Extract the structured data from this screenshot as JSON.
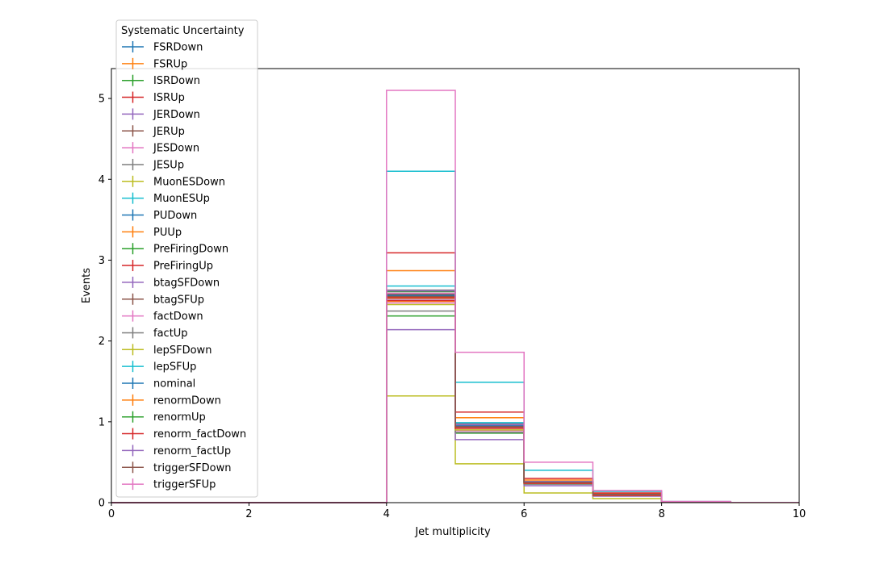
{
  "chart_data": {
    "type": "histogram-step",
    "xlabel": "Jet multiplicity",
    "ylabel": "Events",
    "xlim": [
      0,
      10
    ],
    "ylim": [
      0,
      5.37
    ],
    "xticks": [
      "0",
      "2",
      "4",
      "6",
      "8",
      "10"
    ],
    "yticks": [
      "0",
      "1",
      "2",
      "3",
      "4",
      "5"
    ],
    "bin_edges": [
      0,
      1,
      2,
      3,
      4,
      5,
      6,
      7,
      8,
      9,
      10
    ],
    "legend": {
      "title": "Systematic Uncertainty",
      "position": "upper-left"
    },
    "series": [
      {
        "name": "FSRDown",
        "color": "#1f77b4",
        "values": [
          0,
          0,
          0,
          0,
          2.55,
          0.94,
          0.25,
          0.1,
          0.01,
          0.002
        ]
      },
      {
        "name": "FSRUp",
        "color": "#ff7f0e",
        "values": [
          0,
          0,
          0,
          0,
          2.87,
          1.05,
          0.28,
          0.11,
          0.011,
          0.002
        ]
      },
      {
        "name": "ISRDown",
        "color": "#2ca02c",
        "values": [
          0,
          0,
          0,
          0,
          2.31,
          0.86,
          0.23,
          0.09,
          0.009,
          0.002
        ]
      },
      {
        "name": "ISRUp",
        "color": "#d62728",
        "values": [
          0,
          0,
          0,
          0,
          3.09,
          1.12,
          0.3,
          0.12,
          0.012,
          0.002
        ]
      },
      {
        "name": "JERDown",
        "color": "#9467bd",
        "values": [
          0,
          0,
          0,
          0,
          2.52,
          0.93,
          0.25,
          0.1,
          0.01,
          0.002
        ]
      },
      {
        "name": "JERUp",
        "color": "#8c564b",
        "values": [
          0,
          0,
          0,
          0,
          2.57,
          0.95,
          0.25,
          0.1,
          0.01,
          0.002
        ]
      },
      {
        "name": "JESDown",
        "color": "#e377c2",
        "values": [
          0,
          0,
          0,
          0,
          2.47,
          0.89,
          0.24,
          0.09,
          0.009,
          0.002
        ]
      },
      {
        "name": "JESUp",
        "color": "#7f7f7f",
        "values": [
          0,
          0,
          0,
          0,
          2.63,
          0.98,
          0.26,
          0.1,
          0.01,
          0.002
        ]
      },
      {
        "name": "MuonESDown",
        "color": "#bcbd22",
        "values": [
          0,
          0,
          0,
          0,
          1.32,
          0.48,
          0.12,
          0.05,
          0.005,
          0.001
        ]
      },
      {
        "name": "MuonESUp",
        "color": "#17becf",
        "values": [
          0,
          0,
          0,
          0,
          4.1,
          1.49,
          0.4,
          0.14,
          0.014,
          0.003
        ]
      },
      {
        "name": "PUDown",
        "color": "#1f77b4",
        "values": [
          0,
          0,
          0,
          0,
          2.57,
          0.95,
          0.25,
          0.1,
          0.01,
          0.002
        ]
      },
      {
        "name": "PUUp",
        "color": "#ff7f0e",
        "values": [
          0,
          0,
          0,
          0,
          2.53,
          0.94,
          0.25,
          0.1,
          0.01,
          0.002
        ]
      },
      {
        "name": "PreFiringDown",
        "color": "#2ca02c",
        "values": [
          0,
          0,
          0,
          0,
          2.56,
          0.95,
          0.25,
          0.1,
          0.01,
          0.002
        ]
      },
      {
        "name": "PreFiringUp",
        "color": "#d62728",
        "values": [
          0,
          0,
          0,
          0,
          2.54,
          0.94,
          0.25,
          0.1,
          0.01,
          0.002
        ]
      },
      {
        "name": "btagSFDown",
        "color": "#9467bd",
        "values": [
          0,
          0,
          0,
          0,
          2.14,
          0.78,
          0.21,
          0.08,
          0.008,
          0.002
        ]
      },
      {
        "name": "btagSFUp",
        "color": "#8c564b",
        "values": [
          0,
          0,
          0,
          0,
          2.58,
          0.95,
          0.25,
          0.1,
          0.01,
          0.002
        ]
      },
      {
        "name": "factDown",
        "color": "#e377c2",
        "values": [
          0,
          0,
          0,
          0,
          2.59,
          0.96,
          0.26,
          0.1,
          0.01,
          0.002
        ]
      },
      {
        "name": "factUp",
        "color": "#7f7f7f",
        "values": [
          0,
          0,
          0,
          0,
          2.37,
          0.87,
          0.23,
          0.09,
          0.009,
          0.002
        ]
      },
      {
        "name": "lepSFDown",
        "color": "#bcbd22",
        "values": [
          0,
          0,
          0,
          0,
          2.45,
          0.9,
          0.24,
          0.09,
          0.009,
          0.002
        ]
      },
      {
        "name": "lepSFUp",
        "color": "#17becf",
        "values": [
          0,
          0,
          0,
          0,
          2.68,
          0.99,
          0.26,
          0.1,
          0.01,
          0.002
        ]
      },
      {
        "name": "nominal",
        "color": "#1f77b4",
        "values": [
          0,
          0,
          0,
          0,
          2.56,
          0.95,
          0.25,
          0.1,
          0.01,
          0.002
        ]
      },
      {
        "name": "renormDown",
        "color": "#ff7f0e",
        "values": [
          0,
          0,
          0,
          0,
          2.49,
          0.92,
          0.24,
          0.09,
          0.009,
          0.002
        ]
      },
      {
        "name": "renormUp",
        "color": "#2ca02c",
        "values": [
          0,
          0,
          0,
          0,
          2.61,
          0.97,
          0.26,
          0.1,
          0.01,
          0.002
        ]
      },
      {
        "name": "renorm_factDown",
        "color": "#d62728",
        "values": [
          0,
          0,
          0,
          0,
          2.5,
          0.92,
          0.24,
          0.09,
          0.009,
          0.002
        ]
      },
      {
        "name": "renorm_factUp",
        "color": "#9467bd",
        "values": [
          0,
          0,
          0,
          0,
          2.62,
          0.97,
          0.26,
          0.1,
          0.01,
          0.002
        ]
      },
      {
        "name": "triggerSFDown",
        "color": "#8c564b",
        "values": [
          0,
          0,
          0,
          0,
          2.55,
          0.94,
          0.25,
          0.1,
          0.01,
          0.002
        ]
      },
      {
        "name": "triggerSFUp",
        "color": "#e377c2",
        "values": [
          0,
          0,
          0,
          0,
          5.1,
          1.86,
          0.5,
          0.15,
          0.015,
          0.003
        ]
      }
    ]
  }
}
